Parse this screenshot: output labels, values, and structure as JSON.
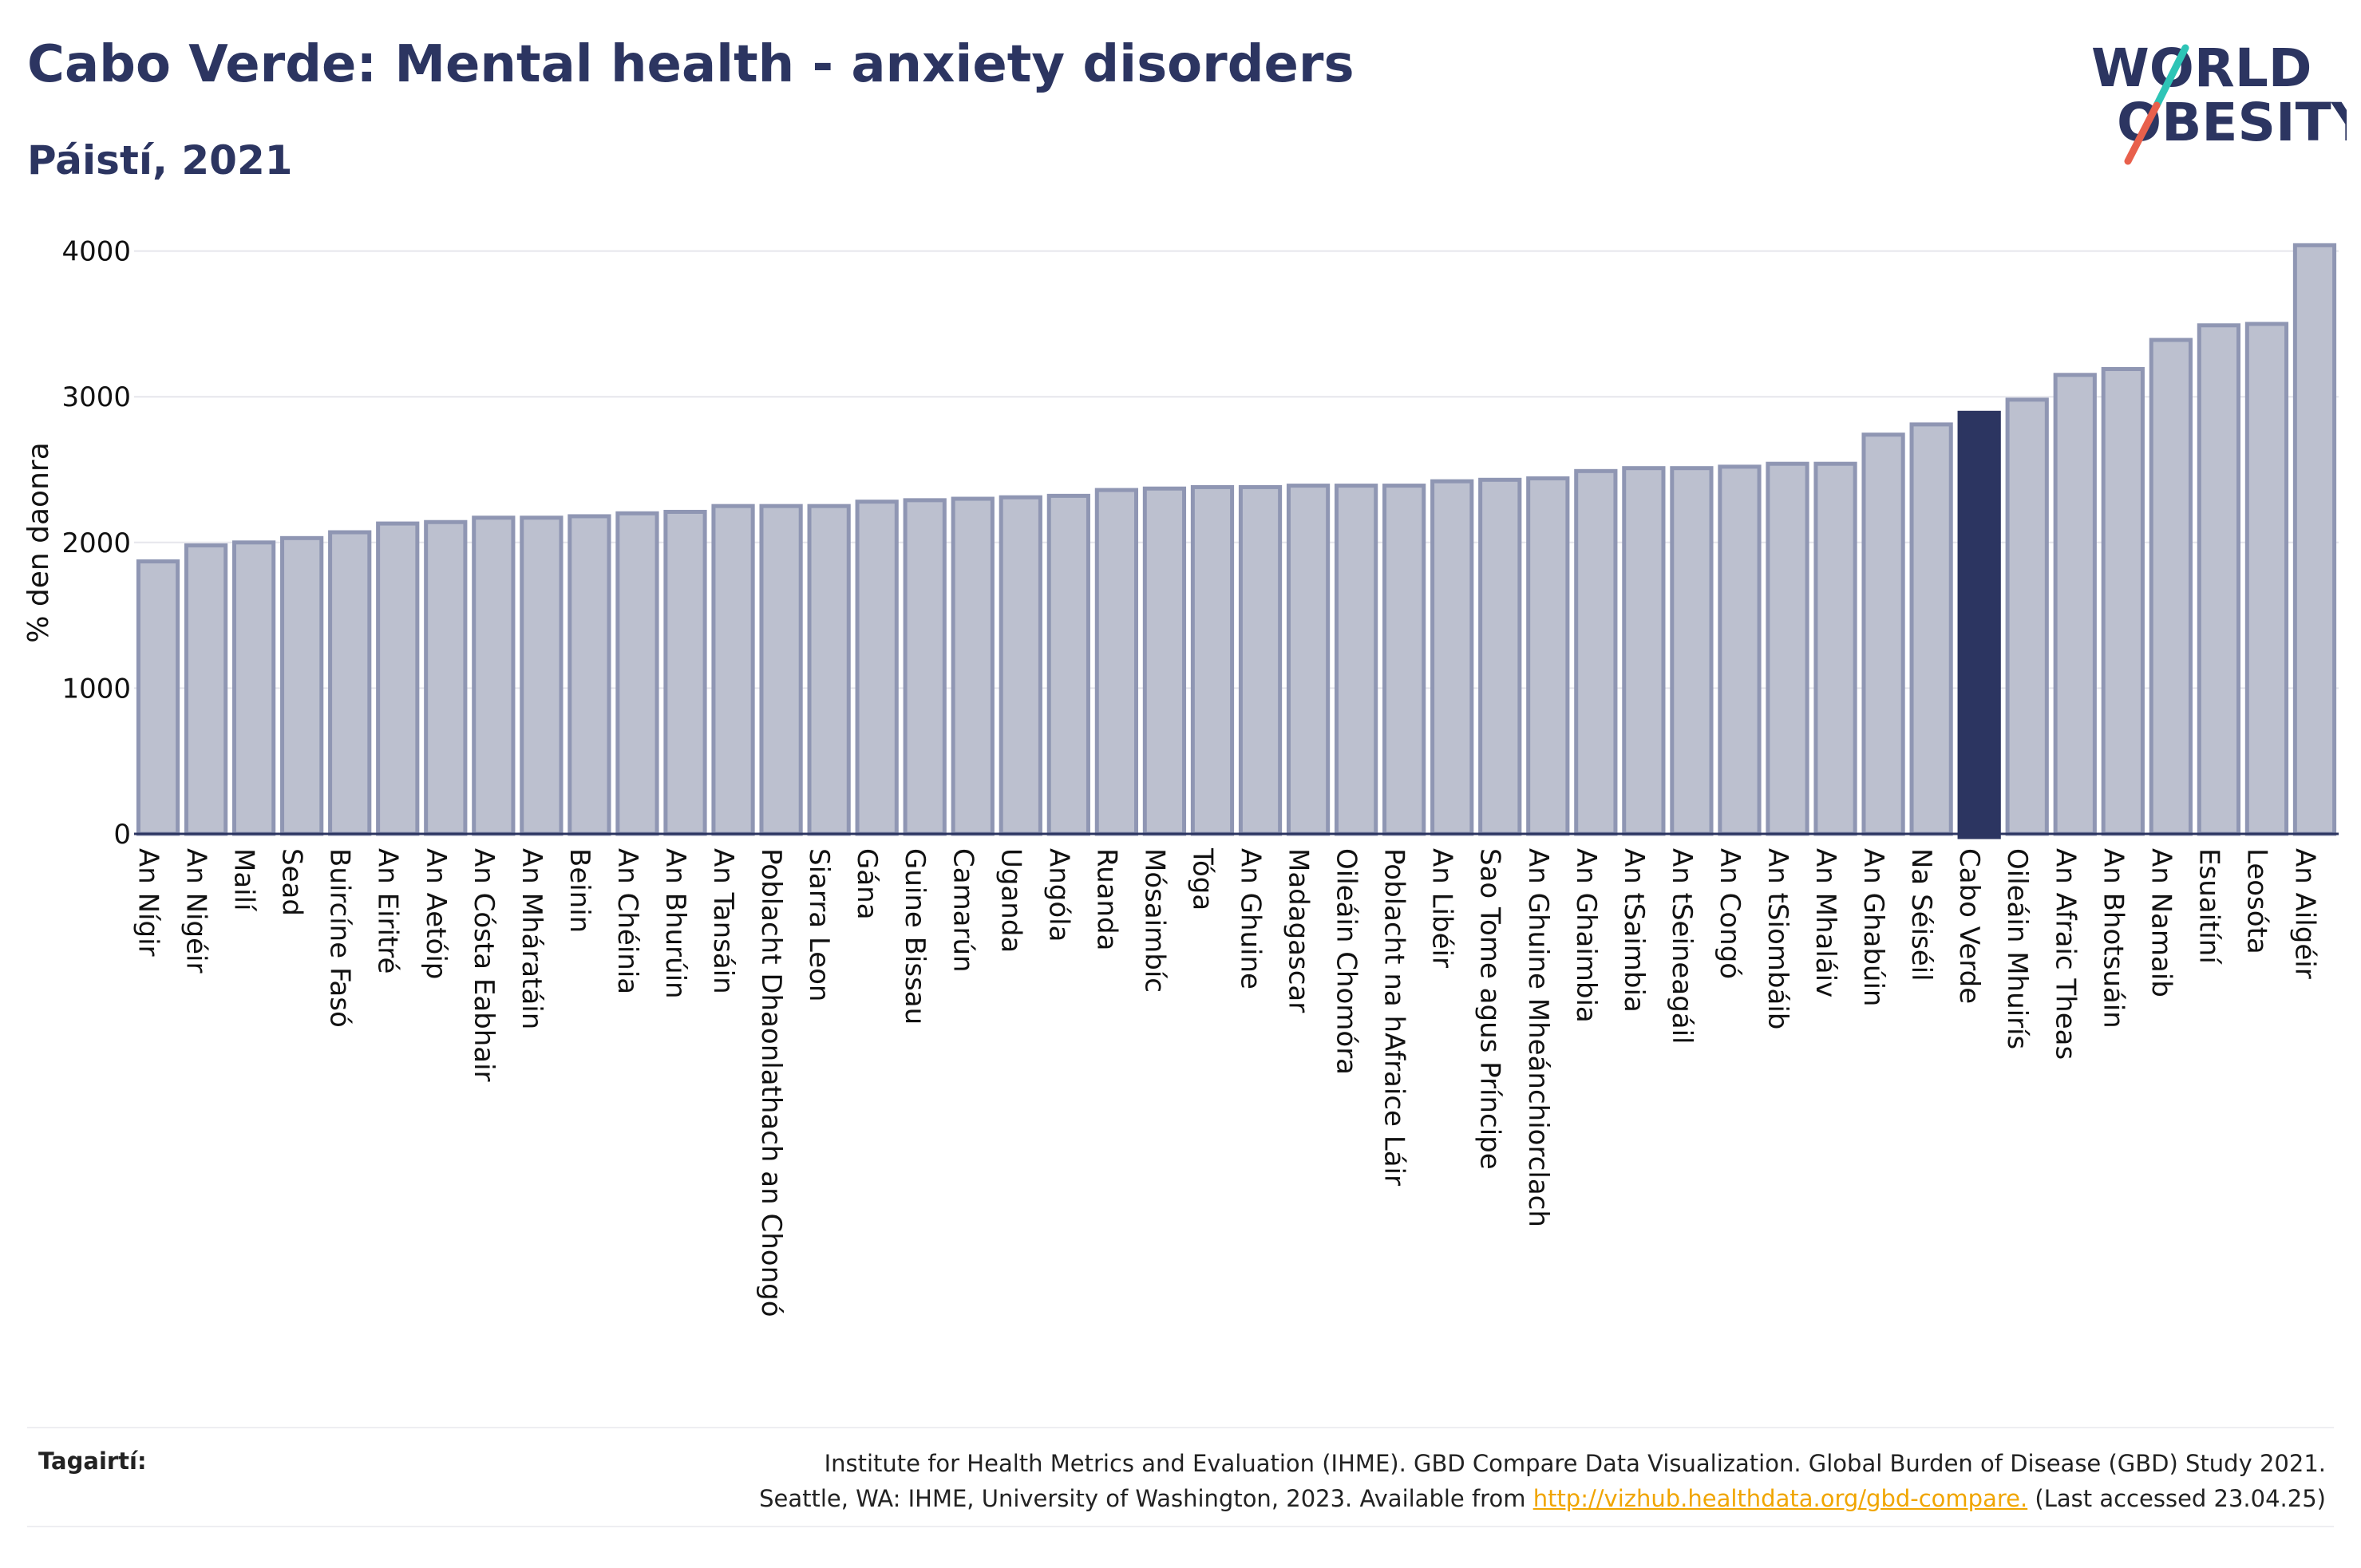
{
  "header": {
    "title": "Cabo Verde: Mental health - anxiety disorders",
    "subtitle": "Páistí, 2021"
  },
  "logo": {
    "line1": "WORLD",
    "line2": "OBESITY",
    "colors": {
      "text": "#2c3561",
      "slash_top": "#2ec4b6",
      "slash_bottom": "#e8604c"
    }
  },
  "chart_data": {
    "type": "bar",
    "ylabel": "% den daonra",
    "xlabel": "",
    "ylim": [
      0,
      4100
    ],
    "yticks": [
      0,
      1000,
      2000,
      3000,
      4000
    ],
    "grid": true,
    "highlight": "Cabo Verde",
    "colors": {
      "bar": "#bcc0cf",
      "bar_edge": "#8f96b3",
      "highlight": "#2c3561",
      "grid": "#e6e6ec",
      "axis": "#2c3561"
    },
    "categories": [
      "An Nígir",
      "An Nigéir",
      "Mailí",
      "Sead",
      "Buircíne Fasó",
      "An Eiritré",
      "An Aetóip",
      "An Cósta Eabhair",
      "An Mháratáin",
      "Beinin",
      "An Chéinia",
      "An Bhurúin",
      "An Tansáin",
      "Poblacht Dhaonlathach an Chongó",
      "Siarra Leon",
      "Gána",
      "Guine Bissau",
      "Camarún",
      "Uganda",
      "Angóla",
      "Ruanda",
      "Mósaimbíc",
      "Tóga",
      "An Ghuine",
      "Madagascar",
      "Oileáin Chomóra",
      "Poblacht na hAfraice Láir",
      "An Libéir",
      "Sao Tome agus Príncipe",
      "An Ghuine Mheánchiorclach",
      "An Ghaimbia",
      "An tSaimbia",
      "An tSeineagáil",
      "An Congó",
      "An tSiombáib",
      "An Mhaláiv",
      "An Ghabúin",
      "Na Séiséil",
      "Cabo Verde",
      "Oileáin Mhuirís",
      "An Afraic Theas",
      "An Bhotsuáin",
      "An Namaib",
      "Esuaitíní",
      "Leosóta",
      "An Ailgéir"
    ],
    "values": [
      1870,
      1980,
      2000,
      2030,
      2070,
      2130,
      2140,
      2170,
      2170,
      2180,
      2200,
      2210,
      2250,
      2250,
      2250,
      2280,
      2290,
      2300,
      2310,
      2320,
      2360,
      2370,
      2380,
      2380,
      2390,
      2390,
      2390,
      2420,
      2430,
      2440,
      2490,
      2510,
      2510,
      2520,
      2540,
      2540,
      2740,
      2810,
      2890,
      2980,
      3150,
      3190,
      3390,
      3490,
      3500,
      4040
    ]
  },
  "references": {
    "label": "Tagairtí:",
    "line1": "Institute for Health Metrics and Evaluation (IHME). GBD Compare Data Visualization. Global Burden of Disease (GBD) Study 2021.",
    "line2_before": "Seattle, WA: IHME, University of Washington, 2023. Available from",
    "link": "http://vizhub.healthdata.org/gbd-compare.",
    "line2_after": "(Last accessed 23.04.25)"
  }
}
